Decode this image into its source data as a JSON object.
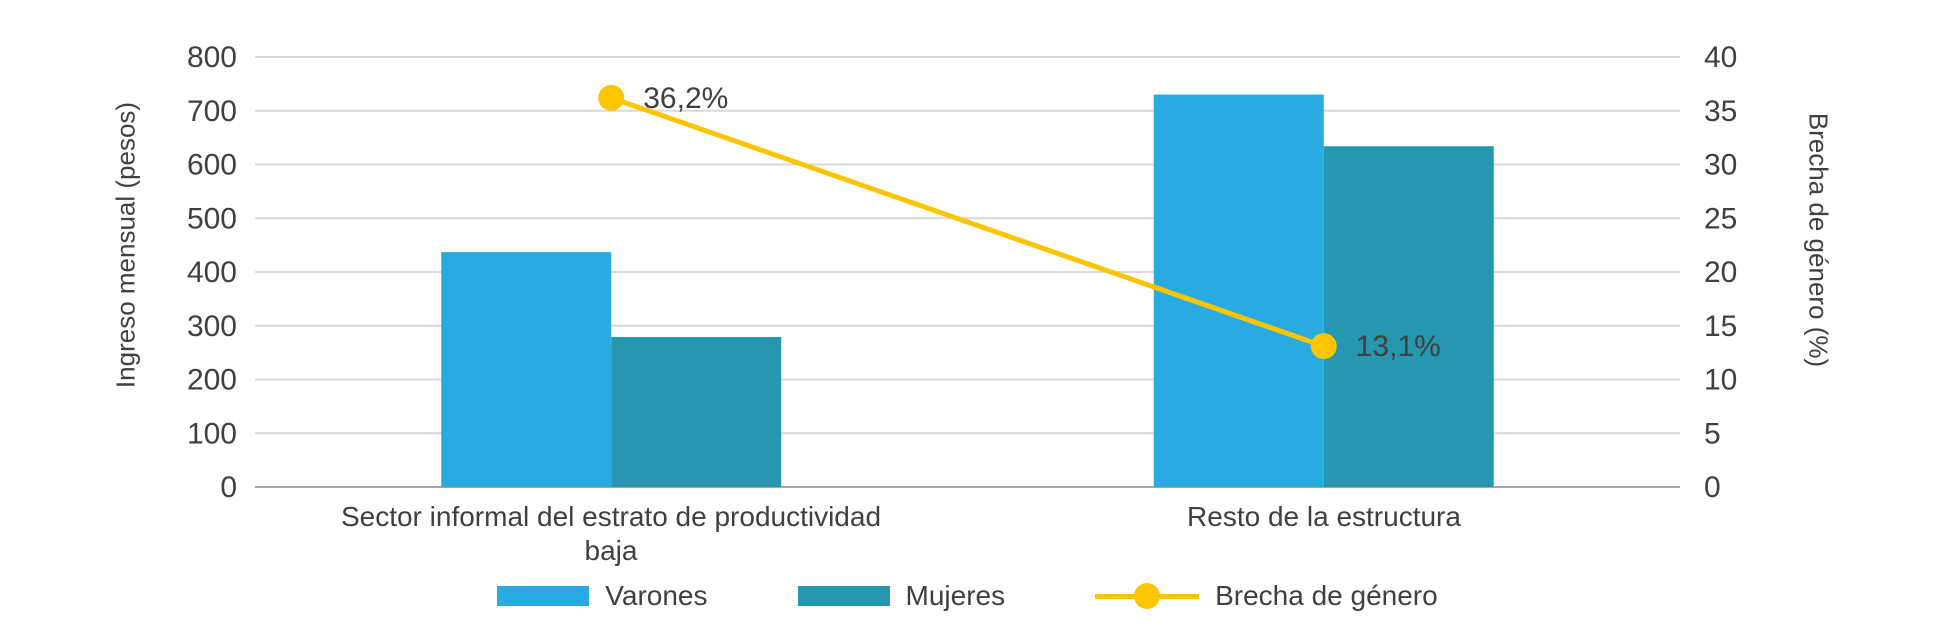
{
  "chart_data": {
    "type": "bar",
    "subtype": "bar+line-combo",
    "categories": [
      "Sector informal del estrato de productividad baja",
      "Resto de la estructura"
    ],
    "bar_series": [
      {
        "name": "Varones",
        "color": "#29abe2",
        "values": [
          437,
          730
        ]
      },
      {
        "name": "Mujeres",
        "color": "#2597ae",
        "values": [
          279,
          634
        ]
      }
    ],
    "line_series": {
      "name": "Brecha de género",
      "color": "#fdc500",
      "axis": "right",
      "values": [
        36.2,
        13.1
      ],
      "labels": [
        "36,2%",
        "13,1%"
      ]
    },
    "left_axis": {
      "label": "Ingreso mensual (pesos)",
      "min": 0,
      "max": 800,
      "step": 100
    },
    "right_axis": {
      "label": "Brecha de género (%)",
      "min": 0,
      "max": 40,
      "step": 5
    },
    "grid": true,
    "gridline_color": "#d9d9d9",
    "baseline_color": "#a6a6a6",
    "text_color": "#404040",
    "legend_position": "bottom"
  }
}
